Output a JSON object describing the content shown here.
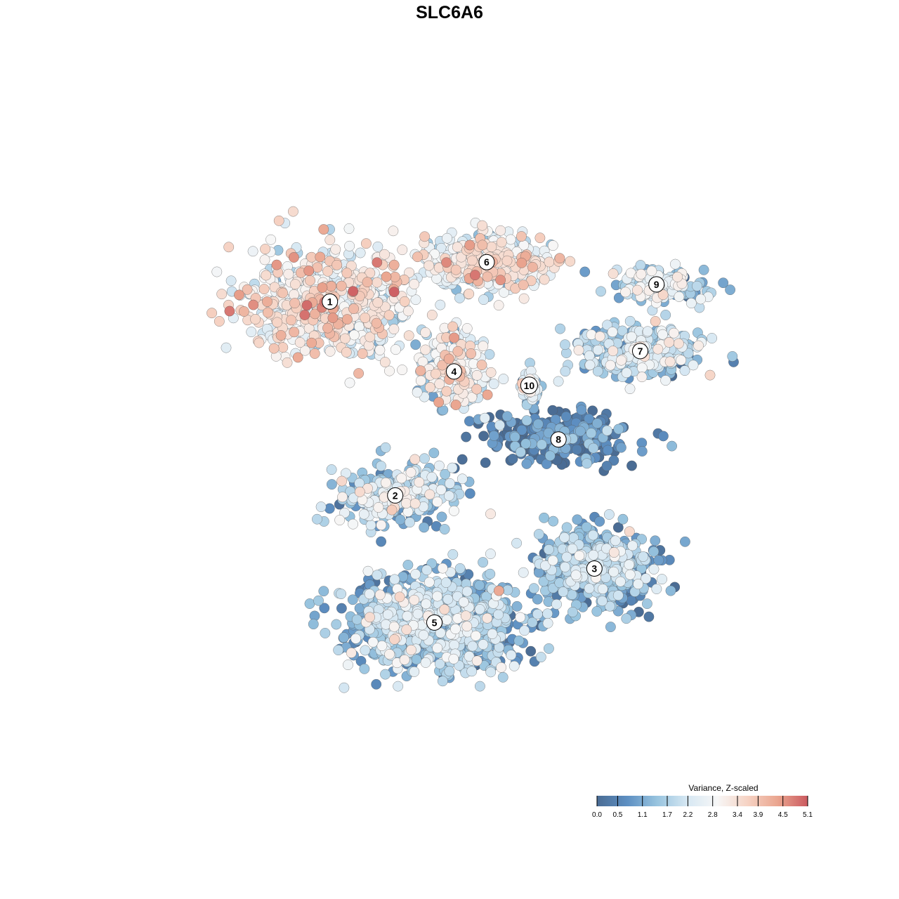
{
  "chart_data": {
    "type": "scatter",
    "title": "SLC6A6",
    "legend": {
      "title": "Variance, Z-scaled",
      "placement": "bottom-right",
      "ticks": [
        0.0,
        0.5,
        1.1,
        1.7,
        2.2,
        2.8,
        3.4,
        3.9,
        4.5,
        5.1
      ],
      "tick_labels": [
        "0.0",
        "0.5",
        "1.1",
        "1.7",
        "2.2",
        "2.8",
        "3.4",
        "3.9",
        "4.5",
        "5.1"
      ],
      "range": [
        0.0,
        5.1
      ],
      "colors": [
        "#4a6c94",
        "#5d8fc2",
        "#98c4df",
        "#d7e8f3",
        "#f7f7f7",
        "#f6d3c4",
        "#eaa58f",
        "#cb5a60"
      ]
    },
    "grid": false,
    "axes_visible": false,
    "point_size": "large",
    "clusters": [
      {
        "id": "1",
        "label": "1",
        "x": 0.29,
        "y": 0.73,
        "spread": [
          0.16,
          0.11
        ],
        "mean_value": 2.9,
        "n": 620
      },
      {
        "id": "2",
        "label": "2",
        "x": 0.39,
        "y": 0.425,
        "spread": [
          0.11,
          0.06
        ],
        "mean_value": 1.8,
        "n": 300
      },
      {
        "id": "3",
        "label": "3",
        "x": 0.695,
        "y": 0.31,
        "spread": [
          0.11,
          0.075
        ],
        "mean_value": 1.2,
        "n": 600
      },
      {
        "id": "4",
        "label": "4",
        "x": 0.48,
        "y": 0.62,
        "spread": [
          0.06,
          0.07
        ],
        "mean_value": 2.4,
        "n": 320
      },
      {
        "id": "5",
        "label": "5",
        "x": 0.45,
        "y": 0.225,
        "spread": [
          0.17,
          0.09
        ],
        "mean_value": 1.5,
        "n": 900
      },
      {
        "id": "6",
        "label": "6",
        "x": 0.53,
        "y": 0.792,
        "spread": [
          0.12,
          0.05
        ],
        "mean_value": 2.7,
        "n": 420
      },
      {
        "id": "7",
        "label": "7",
        "x": 0.765,
        "y": 0.652,
        "spread": [
          0.12,
          0.05
        ],
        "mean_value": 1.7,
        "n": 320
      },
      {
        "id": "8",
        "label": "8",
        "x": 0.64,
        "y": 0.513,
        "spread": [
          0.14,
          0.05
        ],
        "mean_value": 0.2,
        "n": 300
      },
      {
        "id": "9",
        "label": "9",
        "x": 0.79,
        "y": 0.757,
        "spread": [
          0.08,
          0.035
        ],
        "mean_value": 1.8,
        "n": 170
      },
      {
        "id": "10",
        "label": "10",
        "x": 0.595,
        "y": 0.598,
        "spread": [
          0.02,
          0.03
        ],
        "mean_value": 2.0,
        "n": 60
      }
    ]
  }
}
